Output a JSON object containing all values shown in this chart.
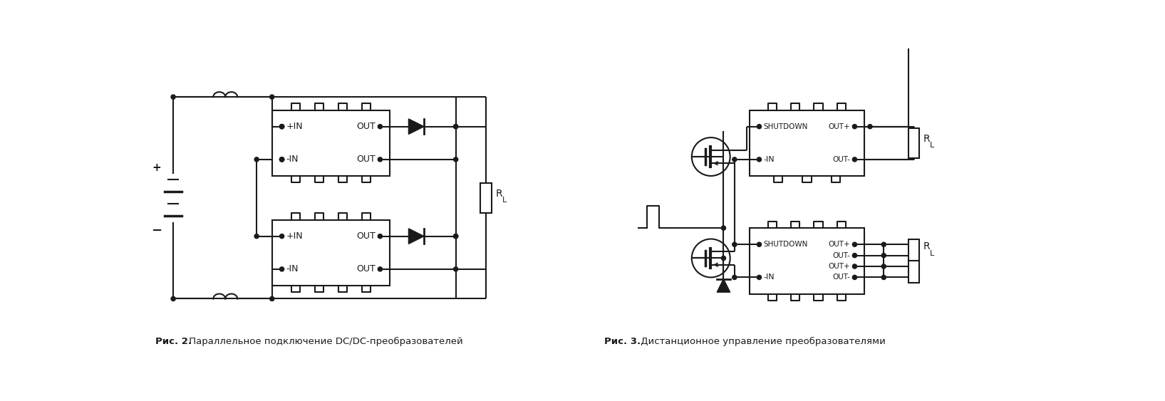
{
  "fig_width": 16.35,
  "fig_height": 5.63,
  "dpi": 100,
  "bg_color": "#ffffff",
  "line_color": "#1a1a1a",
  "line_width": 1.5,
  "caption1_bold": "Рис. 2.",
  "caption1_normal": " Параллельное подключение DC/DC-преобразователей",
  "caption2_bold": "Рис. 3.",
  "caption2_normal": " Дистанционное управление преобразователями"
}
